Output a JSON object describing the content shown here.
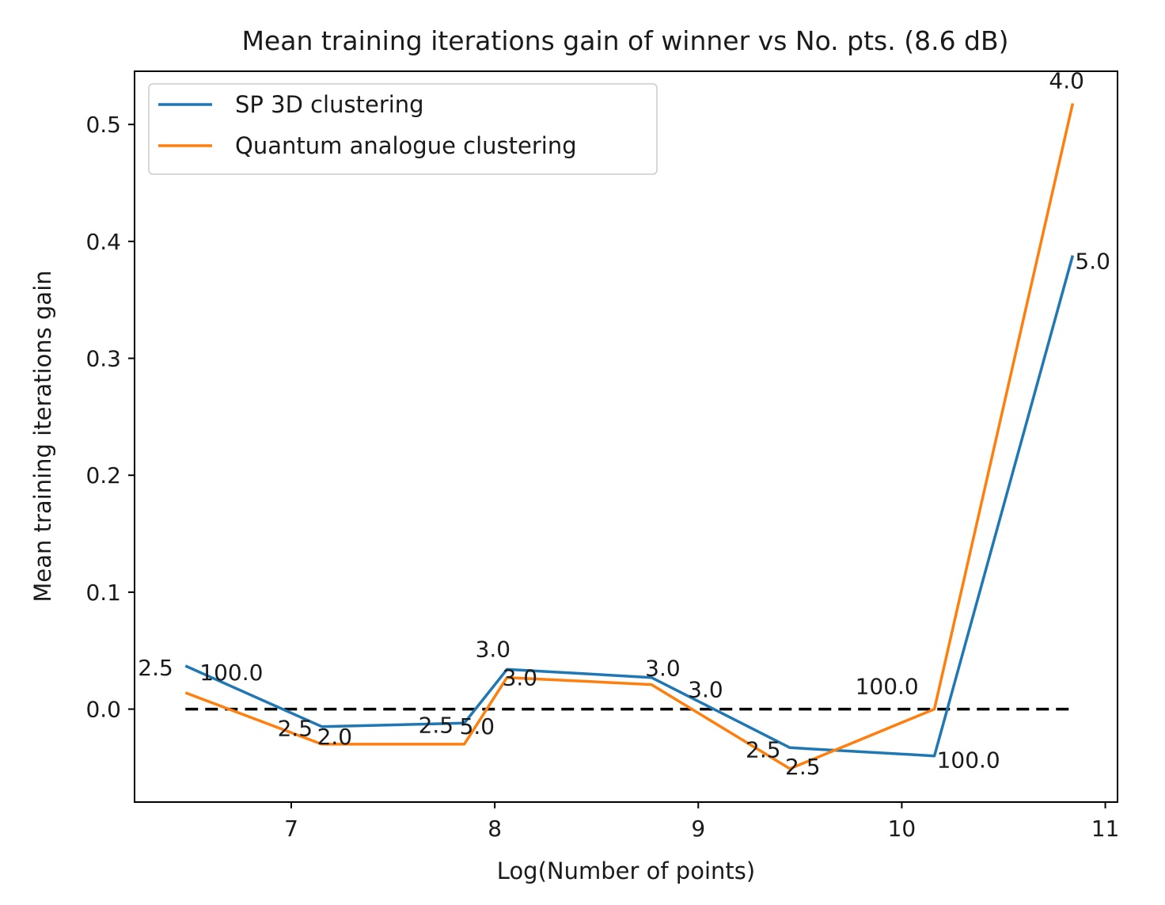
{
  "chart_data": {
    "type": "line",
    "title": "Mean training iterations gain of winner vs No. pts. (8.6 dB)",
    "xlabel": "Log(Number of points)",
    "ylabel": "Mean training iterations gain",
    "xlim": [
      6.23,
      11.06
    ],
    "ylim": [
      -0.0795,
      0.5455
    ],
    "xticks": [
      7,
      8,
      9,
      10,
      11
    ],
    "yticks": [
      0.0,
      0.1,
      0.2,
      0.3,
      0.4,
      0.5
    ],
    "xtick_labels": [
      "7",
      "8",
      "9",
      "10",
      "11"
    ],
    "ytick_labels": [
      "0.0",
      "0.1",
      "0.2",
      "0.3",
      "0.4",
      "0.5"
    ],
    "grid": false,
    "legend_position": "upper-left",
    "reference_line": {
      "y": 0.0,
      "x_range": [
        6.48,
        10.84
      ],
      "style": "dashed",
      "color": "#000000"
    },
    "series": [
      {
        "name": "SP 3D clustering",
        "color": "#1f77b4",
        "x": [
          6.48,
          7.15,
          7.85,
          8.06,
          8.77,
          9.45,
          10.16,
          10.84
        ],
        "y": [
          0.037,
          -0.015,
          -0.012,
          0.034,
          0.027,
          -0.033,
          -0.04,
          0.388
        ],
        "labels": [
          "2.5",
          "2.5",
          "2.5",
          "3.0",
          "3.0",
          "2.5",
          "100.0",
          "5.0"
        ]
      },
      {
        "name": "Quantum analogue clustering",
        "color": "#ff7f0e",
        "x": [
          6.48,
          7.15,
          7.85,
          8.06,
          8.77,
          9.45,
          10.16,
          10.84
        ],
        "y": [
          0.014,
          -0.03,
          -0.03,
          0.027,
          0.021,
          -0.051,
          0.0,
          0.518
        ],
        "labels": [
          "100.0",
          "2.0",
          "5.0",
          "3.0",
          "3.0",
          "2.5",
          "100.0",
          "4.0"
        ]
      }
    ]
  }
}
